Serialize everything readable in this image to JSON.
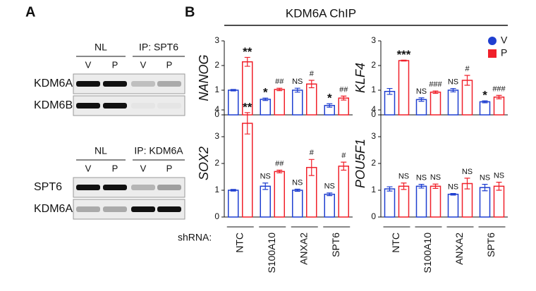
{
  "panel_a": {
    "label": "A",
    "blots": [
      {
        "groups": [
          "NL",
          "IP: SPT6"
        ],
        "lanes": [
          "V",
          "P",
          "V",
          "P"
        ],
        "rows": [
          "KDM6A",
          "KDM6B"
        ]
      },
      {
        "groups": [
          "NL",
          "IP: KDM6A"
        ],
        "lanes": [
          "V",
          "P",
          "V",
          "P"
        ],
        "rows": [
          "SPT6",
          "KDM6A"
        ]
      }
    ]
  },
  "panel_b": {
    "label": "B",
    "title": "KDM6A ChIP",
    "x_label": "shRNA:"
  },
  "chart_data": [
    {
      "type": "bar",
      "y_label": "NANOG",
      "ylim": [
        0,
        3
      ],
      "yticks": [
        0,
        1,
        2,
        3
      ],
      "series": [
        {
          "color": "#1f3fd0",
          "values": [
            1.0,
            0.63,
            1.0,
            0.38
          ],
          "errors": [
            0.03,
            0.05,
            0.08,
            0.07
          ],
          "labels": [
            null,
            "*",
            "NS",
            "*"
          ]
        },
        {
          "color": "#f0202a",
          "values": [
            2.15,
            1.03,
            1.25,
            0.68
          ],
          "errors": [
            0.18,
            0.05,
            0.15,
            0.08
          ],
          "labels": [
            "**",
            "##",
            "#",
            "##"
          ]
        }
      ]
    },
    {
      "type": "bar",
      "y_label": "KLF4",
      "ylim": [
        0,
        3
      ],
      "yticks": [
        0,
        1,
        2,
        3
      ],
      "legend": "upper right",
      "series": [
        {
          "name": "V",
          "color": "#1f3fd0",
          "values": [
            0.95,
            0.62,
            1.0,
            0.53
          ],
          "errors": [
            0.12,
            0.07,
            0.07,
            0.04
          ],
          "labels": [
            null,
            "NS",
            "NS",
            "*"
          ]
        },
        {
          "name": "P",
          "color": "#f0202a",
          "values": [
            2.2,
            0.92,
            1.4,
            0.72
          ],
          "errors": [
            0.02,
            0.05,
            0.2,
            0.07
          ],
          "labels": [
            "***",
            "###",
            "#",
            "###"
          ]
        }
      ]
    },
    {
      "type": "bar",
      "y_label": "SOX2",
      "ylim": [
        0,
        4
      ],
      "yticks": [
        0,
        1,
        2,
        3,
        4
      ],
      "categories": [
        "NTC",
        "S100A10",
        "ANXA2",
        "SPT6"
      ],
      "series": [
        {
          "color": "#1f3fd0",
          "values": [
            1.0,
            1.15,
            1.0,
            0.85
          ],
          "errors": [
            0.03,
            0.12,
            0.04,
            0.05
          ],
          "labels": [
            null,
            "NS",
            "NS",
            "NS"
          ]
        },
        {
          "color": "#f0202a",
          "values": [
            3.5,
            1.7,
            1.85,
            1.9
          ],
          "errors": [
            0.4,
            0.05,
            0.3,
            0.15
          ],
          "labels": [
            "**",
            "##",
            "#",
            "#"
          ]
        }
      ]
    },
    {
      "type": "bar",
      "y_label": "POU5F1",
      "ylim": [
        0,
        4
      ],
      "yticks": [
        0,
        1,
        2,
        3,
        4
      ],
      "categories": [
        "NTC",
        "S100A10",
        "ANXA2",
        "SPT6"
      ],
      "series": [
        {
          "color": "#1f3fd0",
          "values": [
            1.05,
            1.15,
            0.85,
            1.1
          ],
          "errors": [
            0.08,
            0.07,
            0.03,
            0.12
          ],
          "labels": [
            null,
            "NS",
            "NS",
            "NS"
          ]
        },
        {
          "color": "#f0202a",
          "values": [
            1.15,
            1.15,
            1.25,
            1.15
          ],
          "errors": [
            0.12,
            0.08,
            0.2,
            0.15
          ],
          "labels": [
            "NS",
            "NS",
            "NS",
            "NS"
          ]
        }
      ]
    }
  ]
}
